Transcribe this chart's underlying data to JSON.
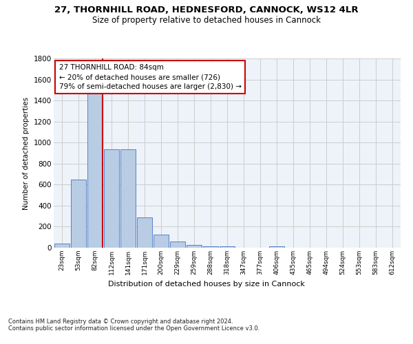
{
  "title_line1": "27, THORNHILL ROAD, HEDNESFORD, CANNOCK, WS12 4LR",
  "title_line2": "Size of property relative to detached houses in Cannock",
  "xlabel": "Distribution of detached houses by size in Cannock",
  "ylabel": "Number of detached properties",
  "bar_labels": [
    "23sqm",
    "53sqm",
    "82sqm",
    "112sqm",
    "141sqm",
    "171sqm",
    "200sqm",
    "229sqm",
    "259sqm",
    "288sqm",
    "318sqm",
    "347sqm",
    "377sqm",
    "406sqm",
    "435sqm",
    "465sqm",
    "494sqm",
    "524sqm",
    "553sqm",
    "583sqm",
    "612sqm"
  ],
  "bar_values": [
    40,
    650,
    1470,
    935,
    935,
    290,
    125,
    60,
    25,
    15,
    15,
    0,
    0,
    15,
    0,
    0,
    0,
    0,
    0,
    0,
    0
  ],
  "bar_color": "#b8cce4",
  "bar_edge_color": "#4472c4",
  "annotation_text": "27 THORNHILL ROAD: 84sqm\n← 20% of detached houses are smaller (726)\n79% of semi-detached houses are larger (2,830) →",
  "annotation_box_color": "#ffffff",
  "annotation_box_edge_color": "#cc0000",
  "vline_color": "#cc0000",
  "ylim": [
    0,
    1800
  ],
  "yticks": [
    0,
    200,
    400,
    600,
    800,
    1000,
    1200,
    1400,
    1600,
    1800
  ],
  "grid_color": "#cccccc",
  "footnote": "Contains HM Land Registry data © Crown copyright and database right 2024.\nContains public sector information licensed under the Open Government Licence v3.0.",
  "background_color": "#eef2f9",
  "vline_index": 2.47
}
